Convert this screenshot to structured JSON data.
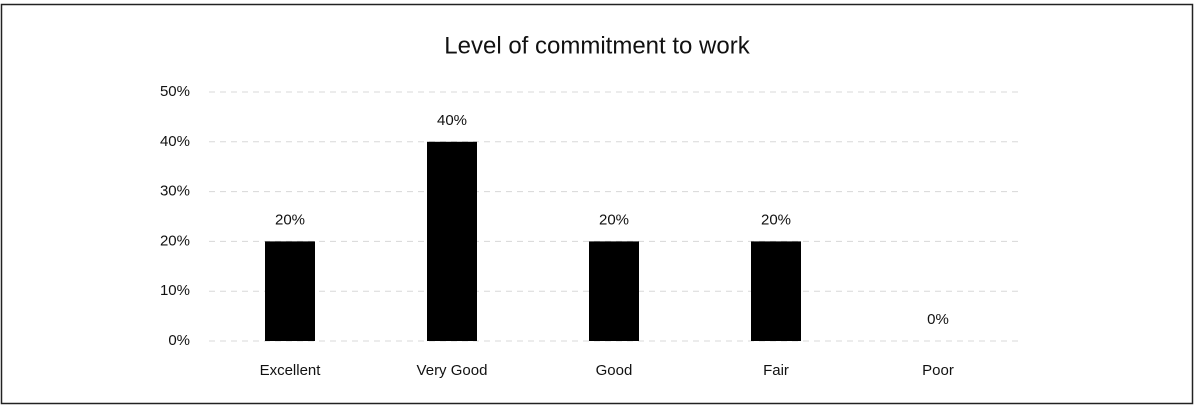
{
  "chart_data": {
    "type": "bar",
    "title": "Level of commitment to work",
    "categories": [
      "Excellent",
      "Very Good",
      "Good",
      "Fair",
      "Poor"
    ],
    "values": [
      20,
      40,
      20,
      20,
      0
    ],
    "value_labels": [
      "20%",
      "40%",
      "20%",
      "20%",
      "0%"
    ],
    "color": "#000000",
    "ylim": [
      0,
      50
    ],
    "yticks": [
      {
        "value": 0,
        "label": "0%"
      },
      {
        "value": 10,
        "label": "10%"
      },
      {
        "value": 20,
        "label": "20%"
      },
      {
        "value": 30,
        "label": "30%"
      },
      {
        "value": 40,
        "label": "40%"
      },
      {
        "value": 50,
        "label": "50%"
      }
    ],
    "grid": true
  }
}
